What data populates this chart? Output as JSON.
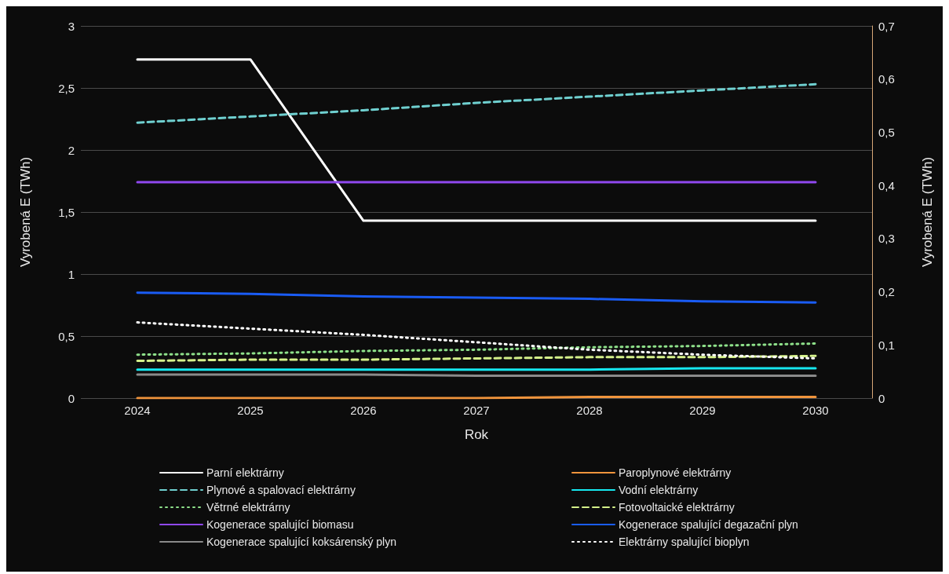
{
  "chart_data": {
    "type": "line",
    "xlabel": "Rok",
    "ylabel": "Vyrobená E (TWh)",
    "y2label": "Vyrobená E (TWh)",
    "categories": [
      "2024",
      "2025",
      "2026",
      "2027",
      "2028",
      "2029",
      "2030"
    ],
    "ylim": [
      0,
      3
    ],
    "yticks": [
      0,
      {
        "value": 0.5,
        "label": "0,5"
      },
      1,
      {
        "value": 1.5,
        "label": "1,5"
      },
      2,
      {
        "value": 2.5,
        "label": "2,5"
      },
      3
    ],
    "y2lim": [
      0,
      0.7
    ],
    "y2ticks": [
      0,
      {
        "value": 0.1,
        "label": "0,1"
      },
      {
        "value": 0.2,
        "label": "0,2"
      },
      {
        "value": 0.3,
        "label": "0,3"
      },
      {
        "value": 0.4,
        "label": "0,4"
      },
      {
        "value": 0.5,
        "label": "0,5"
      },
      {
        "value": 0.6,
        "label": "0,6"
      },
      {
        "value": 0.7,
        "label": "0,7"
      }
    ],
    "grid": "y",
    "legend": "bottom",
    "marker": "none",
    "series": [
      {
        "name": "Parní elektrárny",
        "color": "#ffffff",
        "line_style": "solid",
        "values": [
          2.73,
          2.73,
          1.43,
          1.43,
          1.43,
          1.43,
          1.43
        ]
      },
      {
        "name": "Paroplynové elektrárny",
        "color": "#f0943c",
        "line_style": "solid",
        "values": [
          0,
          0,
          0,
          0,
          0.01,
          0.01,
          0.01
        ]
      },
      {
        "name": "Plynové a spalovací elektrárny",
        "color": "#6fd0d0",
        "line_style": "dashed",
        "values": [
          2.22,
          2.27,
          2.32,
          2.38,
          2.43,
          2.48,
          2.53
        ]
      },
      {
        "name": "Vodní elektrárny",
        "color": "#16e8f0",
        "line_style": "solid",
        "values": [
          0.23,
          0.23,
          0.23,
          0.23,
          0.23,
          0.24,
          0.24
        ]
      },
      {
        "name": "Větrné elektrárny",
        "color": "#8ee08a",
        "line_style": "dotted",
        "values": [
          0.35,
          0.36,
          0.38,
          0.39,
          0.41,
          0.42,
          0.44
        ]
      },
      {
        "name": "Fotovoltaické elektrárny",
        "color": "#d4f08a",
        "line_style": "dashed",
        "values": [
          0.3,
          0.31,
          0.31,
          0.32,
          0.33,
          0.33,
          0.34
        ]
      },
      {
        "name": "Kogenerace spalující biomasu",
        "color": "#9048f0",
        "line_style": "solid",
        "values": [
          1.74,
          1.74,
          1.74,
          1.74,
          1.74,
          1.74,
          1.74
        ]
      },
      {
        "name": "Kogenerace spalující degazační plyn",
        "color": "#1a5cf5",
        "line_style": "solid",
        "values": [
          0.85,
          0.84,
          0.82,
          0.81,
          0.8,
          0.78,
          0.77
        ]
      },
      {
        "name": "Kogenerace spalující koksárenský plyn",
        "color": "#8a8a8a",
        "line_style": "solid",
        "values": [
          0.19,
          0.19,
          0.19,
          0.18,
          0.18,
          0.18,
          0.18
        ]
      },
      {
        "name": "Elektrárny spalující bioplyn",
        "color": "#ffffff",
        "line_style": "dotted",
        "values": [
          0.61,
          0.56,
          0.51,
          0.45,
          0.39,
          0.35,
          0.32
        ]
      }
    ]
  }
}
